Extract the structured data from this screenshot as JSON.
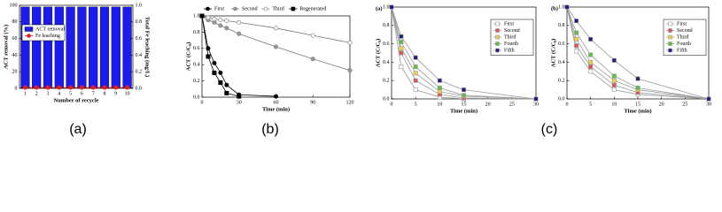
{
  "chart_data": [
    {
      "type": "bar",
      "caption": "(a)",
      "xlabel": "Number of recycle",
      "ylabel": "ACT removal (%)",
      "y2label": "Total Fe leaching (mg/L)",
      "categories": [
        "1",
        "2",
        "3",
        "4",
        "5",
        "6",
        "7",
        "8",
        "9",
        "10"
      ],
      "series": [
        {
          "name": "ACT removal",
          "type": "bar",
          "color": "#1c1cf0",
          "values": [
            98,
            98,
            98,
            98,
            98,
            98,
            98,
            98,
            98,
            98
          ]
        },
        {
          "name": "Fe leaching",
          "type": "line",
          "axis": "y2",
          "color": "#e02020",
          "fill": "#e02020",
          "marker": "circle",
          "values": [
            0.01,
            0.01,
            0.01,
            0.01,
            0.01,
            0.01,
            0.01,
            0.01,
            0.01,
            0.01
          ]
        }
      ],
      "ylim": [
        0,
        100
      ],
      "yticks": [
        0,
        20,
        40,
        60,
        80,
        100
      ],
      "y2lim": [
        0,
        1
      ],
      "y2ticks": [
        {
          "value": 0,
          "label": "0.0"
        },
        0.2,
        0.4,
        0.6,
        0.8,
        {
          "value": 1,
          "label": "1.0"
        }
      ],
      "legend": "upper left"
    },
    {
      "type": "line",
      "caption": "(b)",
      "xlabel": "Time (min)",
      "ylabel": "ACT (C/C₀)",
      "x": [
        0,
        5,
        10,
        15,
        20,
        30,
        60,
        90,
        120
      ],
      "series": [
        {
          "name": "First",
          "color": "#000000",
          "fill": "#000000",
          "marker": "circle",
          "values": [
            1,
            0.6,
            0.42,
            0.3,
            0.15,
            0.03,
            0.01,
            null,
            null
          ]
        },
        {
          "name": "Second",
          "color": "#777777",
          "fill": "#999999",
          "marker": "circle",
          "values": [
            1,
            0.95,
            0.92,
            0.88,
            0.85,
            0.78,
            0.62,
            0.47,
            0.33
          ]
        },
        {
          "name": "Third",
          "color": "#777777",
          "fill": "#ffffff",
          "marker": "circle",
          "values": [
            1,
            0.98,
            0.96,
            0.95,
            0.94,
            0.92,
            0.85,
            0.76,
            0.67
          ]
        },
        {
          "name": "Regenerated",
          "color": "#000000",
          "fill": "#000000",
          "marker": "square",
          "values": [
            1,
            0.5,
            0.3,
            0.18,
            0.05,
            0.01,
            null,
            null,
            null
          ]
        }
      ],
      "xlim": [
        0,
        120
      ],
      "xticks": [
        0,
        30,
        60,
        90,
        120
      ],
      "ylim": [
        0,
        1
      ],
      "yticks": [
        {
          "value": 0,
          "label": "0.0"
        },
        0.2,
        0.4,
        0.6,
        0.8,
        {
          "value": 1,
          "label": "1.0"
        }
      ],
      "legend": "top"
    },
    {
      "type": "line",
      "panel_label": "(a)",
      "caption": "(c)",
      "xlabel": "Time (min)",
      "ylabel": "ACT (C/C₀)",
      "x": [
        0,
        2,
        5,
        10,
        15,
        30
      ],
      "series": [
        {
          "name": "First",
          "color": "#999999",
          "fill": "#ffffff",
          "marker": "square",
          "values": [
            1,
            0.35,
            0.1,
            0.02,
            0,
            0
          ]
        },
        {
          "name": "Second",
          "color": "#999999",
          "fill": "#e05050",
          "marker": "square",
          "values": [
            1,
            0.5,
            0.2,
            0.05,
            0.01,
            0
          ]
        },
        {
          "name": "Third",
          "color": "#999999",
          "fill": "#f0d040",
          "marker": "square",
          "values": [
            1,
            0.55,
            0.28,
            0.08,
            0.03,
            0
          ]
        },
        {
          "name": "Fourth",
          "color": "#999999",
          "fill": "#60c040",
          "marker": "square",
          "values": [
            1,
            0.62,
            0.35,
            0.12,
            0.04,
            0
          ]
        },
        {
          "name": "Fifth",
          "color": "#999999",
          "fill": "#1c1c80",
          "marker": "square",
          "values": [
            1,
            0.68,
            0.45,
            0.2,
            0.1,
            0
          ]
        }
      ],
      "xlim": [
        0,
        30
      ],
      "xticks": [
        0,
        5,
        10,
        15,
        20,
        25,
        30
      ],
      "ylim": [
        0,
        1
      ],
      "yticks": [
        {
          "value": 0,
          "label": "0.0"
        },
        0.2,
        0.4,
        0.6,
        0.8,
        {
          "value": 1,
          "label": "1.0"
        }
      ],
      "legend": "upper right"
    },
    {
      "type": "line",
      "panel_label": "(b)",
      "xlabel": "Time (min)",
      "ylabel": "ACT (C/C₀)",
      "x": [
        0,
        2,
        5,
        10,
        15,
        30
      ],
      "series": [
        {
          "name": "First",
          "color": "#999999",
          "fill": "#ffffff",
          "marker": "square",
          "values": [
            1,
            0.52,
            0.3,
            0.1,
            0.05,
            0
          ]
        },
        {
          "name": "Second",
          "color": "#999999",
          "fill": "#e05050",
          "marker": "square",
          "values": [
            1,
            0.58,
            0.35,
            0.15,
            0.07,
            0
          ]
        },
        {
          "name": "Third",
          "color": "#999999",
          "fill": "#f0d040",
          "marker": "square",
          "values": [
            1,
            0.65,
            0.4,
            0.2,
            0.1,
            0
          ]
        },
        {
          "name": "Fourth",
          "color": "#999999",
          "fill": "#60c040",
          "marker": "square",
          "values": [
            1,
            0.72,
            0.48,
            0.25,
            0.12,
            0
          ]
        },
        {
          "name": "Fifth",
          "color": "#999999",
          "fill": "#1c1c80",
          "marker": "square",
          "values": [
            1,
            0.85,
            0.65,
            0.42,
            0.22,
            0
          ]
        }
      ],
      "xlim": [
        0,
        30
      ],
      "xticks": [
        0,
        5,
        10,
        15,
        20,
        25,
        30
      ],
      "ylim": [
        0,
        1
      ],
      "yticks": [
        {
          "value": 0,
          "label": "0.0"
        },
        0.2,
        0.4,
        0.6,
        0.8,
        {
          "value": 1,
          "label": "1.0"
        }
      ],
      "legend": "upper right"
    }
  ]
}
